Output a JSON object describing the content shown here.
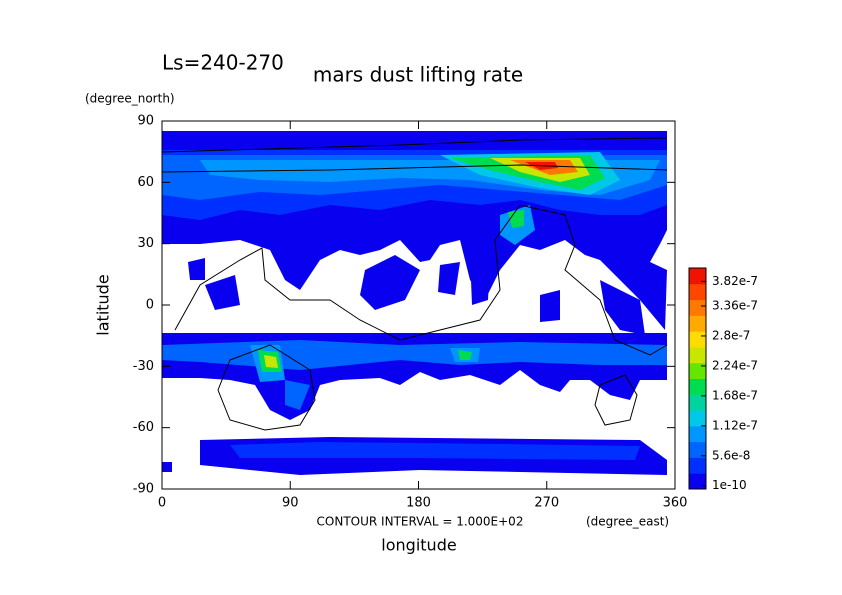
{
  "chart_data": {
    "type": "contour",
    "title": "mars dust lifting rate",
    "subtitle": "Ls=240-270",
    "xlabel": "longitude",
    "ylabel": "latitude",
    "xunit": "(degree_east)",
    "yunit": "(degree_north)",
    "annotation": "CONTOUR INTERVAL = 1.000E+02",
    "xlim": [
      0,
      360
    ],
    "xticks": [
      0,
      90,
      180,
      270,
      360
    ],
    "ylim": [
      -90,
      90
    ],
    "yticks": [
      -90,
      -60,
      -30,
      0,
      30,
      60,
      90
    ],
    "colorbar": {
      "clim": [
        -6e-09,
        4.07e-07
      ],
      "ticks": [
        1e-10,
        5.6e-08,
        1.12e-07,
        1.68e-07,
        2.24e-07,
        2.8e-07,
        3.36e-07,
        3.82e-07
      ],
      "colors": [
        "#0a00f0",
        "#0030ff",
        "#0064ff",
        "#0096ff",
        "#00c8e6",
        "#00d2a0",
        "#00dc50",
        "#64e600",
        "#c8e600",
        "#ffdc00",
        "#ffaa00",
        "#ff7800",
        "#ff4600",
        "#f01400"
      ]
    }
  }
}
